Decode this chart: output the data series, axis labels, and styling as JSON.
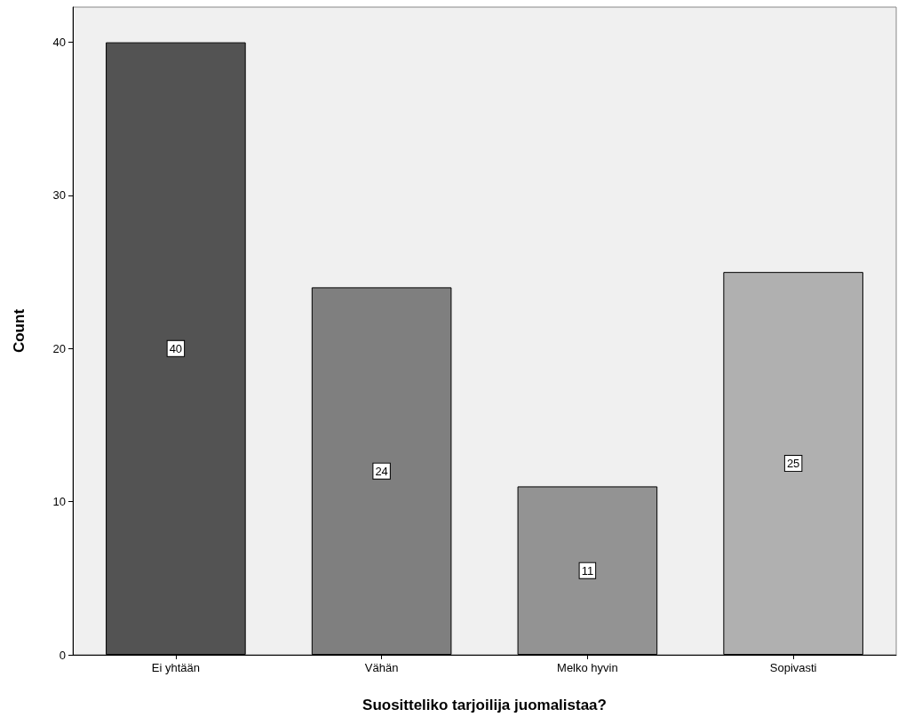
{
  "chart_data": {
    "type": "bar",
    "xlabel": "Suositteliko tarjoilija juomalistaa?",
    "ylabel": "Count",
    "categories": [
      "Ei yhtään",
      "Vähän",
      "Melko hyvin",
      "Sopivasti"
    ],
    "values": [
      40,
      24,
      11,
      25
    ],
    "colors": [
      "#535353",
      "#7f7f7f",
      "#939393",
      "#b0b0b0"
    ],
    "ylim": [
      0,
      42.3
    ],
    "yticks": [
      0,
      10,
      20,
      30,
      40
    ],
    "grid": false,
    "data_labels": true
  }
}
